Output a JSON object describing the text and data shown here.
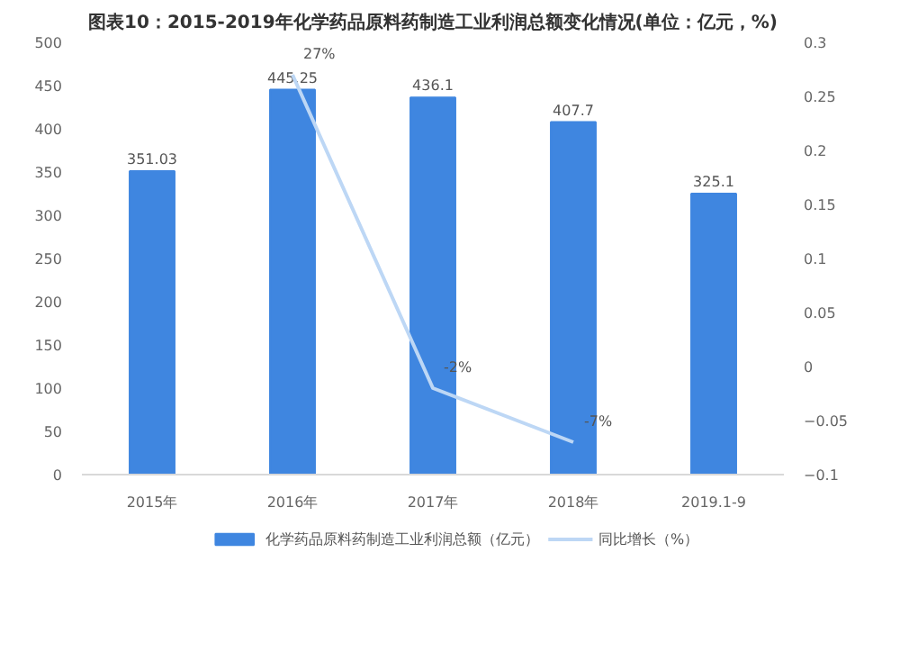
{
  "chart_data": {
    "type": "bar",
    "title": "图表10：2015-2019年化学药品原料药制造工业利润总额变化情况(单位：亿元，%)",
    "categories": [
      "2015年",
      "2016年",
      "2017年",
      "2018年",
      "2019.1-9"
    ],
    "series": [
      {
        "name": "化学药品原料药制造工业利润总额（亿元）",
        "color": "#3f86e0",
        "values": [
          351.03,
          445.25,
          436.1,
          407.7,
          325.1
        ],
        "value_labels": [
          "351.03",
          "445.25",
          "436.1",
          "407.7",
          "325.1"
        ]
      },
      {
        "name": "同比增长（%）",
        "type": "line",
        "axis": "y2",
        "color": "#bdd7f5",
        "values": [
          null,
          0.27,
          -0.02,
          -0.07,
          null
        ],
        "value_labels": [
          null,
          "27%",
          "-2%",
          "-7%",
          null
        ]
      }
    ],
    "ylim": [
      0,
      500
    ],
    "yticks": [
      0,
      50,
      100,
      150,
      200,
      250,
      300,
      350,
      400,
      450,
      500
    ],
    "y2lim": [
      -0.1,
      0.3
    ],
    "y2ticks": [
      -0.1,
      -0.05,
      0,
      0.05,
      0.1,
      0.15,
      0.2,
      0.25,
      0.3
    ],
    "grid": false,
    "legend": "bottom"
  }
}
